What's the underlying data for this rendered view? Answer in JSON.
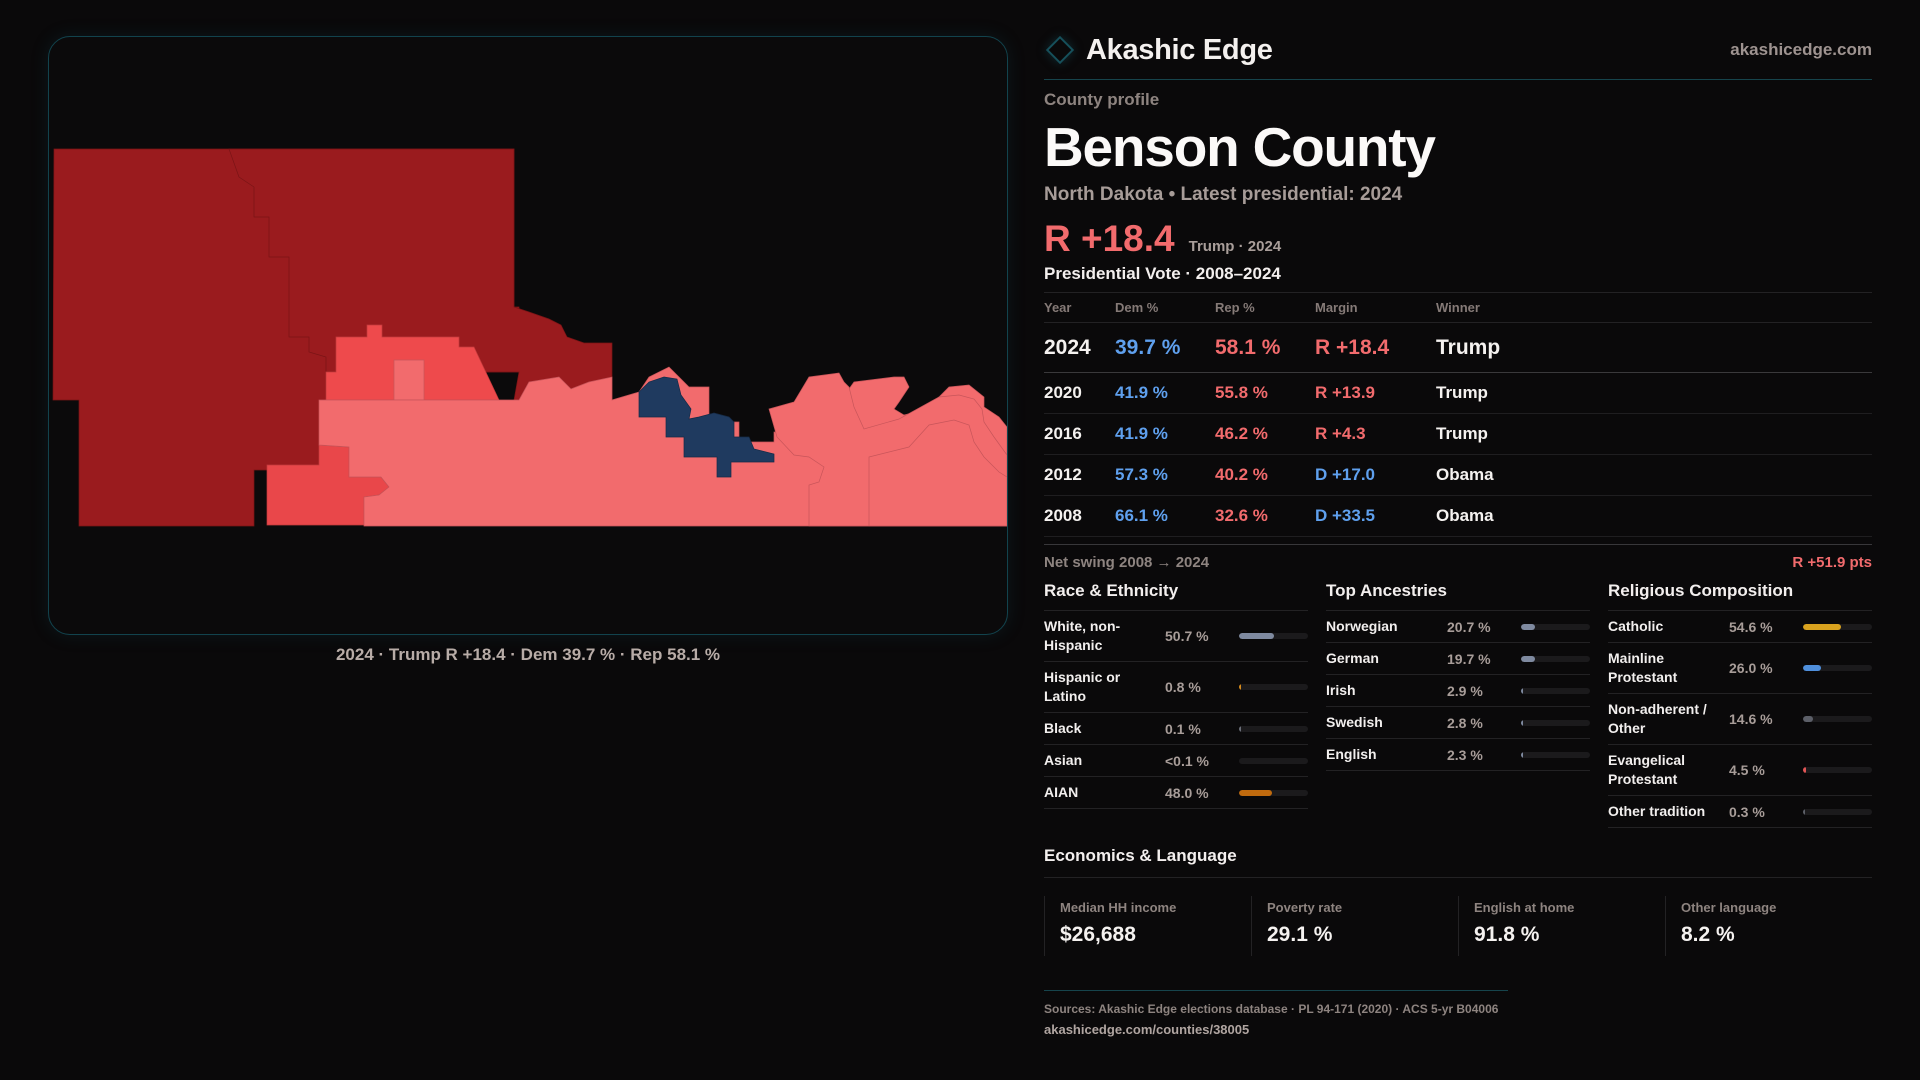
{
  "brand": {
    "name": "Akashic Edge",
    "url": "akashicedge.com",
    "logo_icon": "diamond-outline-icon"
  },
  "profile": {
    "kicker": "County profile",
    "county": "Benson County",
    "subtitle": "North Dakota • Latest presidential: 2024",
    "headline_margin": "R +18.4",
    "headline_note": "Trump · 2024"
  },
  "map": {
    "caption": "2024 · Trump R +18.4 · Dem 39.7 % · Rep 58.1 %",
    "colors": {
      "strong_rep": "#9a1b1e",
      "lean_rep": "#e9474a",
      "mid_rep": "#ee4a4c",
      "tilt_rep": "#f26b6d",
      "dem": "#1f3a5f"
    }
  },
  "votes": {
    "title": "Presidential Vote · 2008–2024",
    "headers": [
      "Year",
      "Dem %",
      "Rep %",
      "Margin",
      "Winner"
    ],
    "rows": [
      {
        "year": "2024",
        "dem": "39.7 %",
        "rep": "58.1 %",
        "margin": "R +18.4",
        "party": "R",
        "winner": "Trump"
      },
      {
        "year": "2020",
        "dem": "41.9 %",
        "rep": "55.8 %",
        "margin": "R +13.9",
        "party": "R",
        "winner": "Trump"
      },
      {
        "year": "2016",
        "dem": "41.9 %",
        "rep": "46.2 %",
        "margin": "R +4.3",
        "party": "R",
        "winner": "Trump"
      },
      {
        "year": "2012",
        "dem": "57.3 %",
        "rep": "40.2 %",
        "margin": "D +17.0",
        "party": "D",
        "winner": "Obama"
      },
      {
        "year": "2008",
        "dem": "66.1 %",
        "rep": "32.6 %",
        "margin": "D +33.5",
        "party": "D",
        "winner": "Obama"
      }
    ],
    "swing_label": "Net swing 2008 → 2024",
    "swing_value": "R +51.9 pts"
  },
  "race": {
    "title": "Race & Ethnicity",
    "items": [
      {
        "label": "White, non-Hispanic",
        "value": "50.7 %",
        "pct": 50.7,
        "color": "#7f8aa0"
      },
      {
        "label": "Hispanic or Latino",
        "value": "0.8 %",
        "pct": 0.8,
        "color": "#d68a1c"
      },
      {
        "label": "Black",
        "value": "0.1 %",
        "pct": 0.1,
        "color": "#6b6e78"
      },
      {
        "label": "Asian",
        "value": "<0.1 %",
        "pct": 0.0,
        "color": "#6b6e78"
      },
      {
        "label": "AIAN",
        "value": "48.0 %",
        "pct": 48.0,
        "color": "#c06a0e"
      }
    ]
  },
  "ancestry": {
    "title": "Top Ancestries",
    "items": [
      {
        "label": "Norwegian",
        "value": "20.7 %",
        "pct": 20.7,
        "color": "#7f8aa0"
      },
      {
        "label": "German",
        "value": "19.7 %",
        "pct": 19.7,
        "color": "#7f8aa0"
      },
      {
        "label": "Irish",
        "value": "2.9 %",
        "pct": 2.9,
        "color": "#7f8aa0"
      },
      {
        "label": "Swedish",
        "value": "2.8 %",
        "pct": 2.8,
        "color": "#7f8aa0"
      },
      {
        "label": "English",
        "value": "2.3 %",
        "pct": 2.3,
        "color": "#7f8aa0"
      }
    ]
  },
  "religion": {
    "title": "Religious Composition",
    "items": [
      {
        "label": "Catholic",
        "value": "54.6 %",
        "pct": 54.6,
        "color": "#d9a21e"
      },
      {
        "label": "Mainline Protestant",
        "value": "26.0 %",
        "pct": 26.0,
        "color": "#4f8fdc"
      },
      {
        "label": "Non-adherent / Other",
        "value": "14.6 %",
        "pct": 14.6,
        "color": "#5c5f68"
      },
      {
        "label": "Evangelical Protestant",
        "value": "4.5 %",
        "pct": 4.5,
        "color": "#e25555"
      },
      {
        "label": "Other tradition",
        "value": "0.3 %",
        "pct": 0.3,
        "color": "#5c5f68"
      }
    ]
  },
  "economics": {
    "title": "Economics & Language",
    "cards": [
      {
        "label": "Median HH income",
        "value": "$26,688"
      },
      {
        "label": "Poverty rate",
        "value": "29.1 %"
      },
      {
        "label": "English at home",
        "value": "91.8 %"
      },
      {
        "label": "Other language",
        "value": "8.2 %"
      }
    ]
  },
  "sources": {
    "line": "Sources: Akashic Edge elections database · PL 94-171 (2020) · ACS 5-yr B04006",
    "url": "akashicedge.com/counties/38005"
  }
}
